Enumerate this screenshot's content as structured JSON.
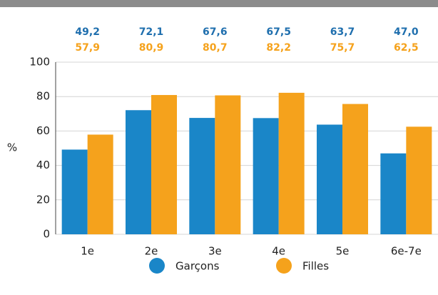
{
  "chart_data": {
    "type": "bar",
    "categories": [
      "1e",
      "2e",
      "3e",
      "4e",
      "5e",
      "6e-7e"
    ],
    "series": [
      {
        "name": "Garçons",
        "color": "#1a86c8",
        "values": [
          49.2,
          72.1,
          67.6,
          67.5,
          63.7,
          47.0
        ],
        "value_labels": [
          "49,2",
          "72,1",
          "67,6",
          "67,5",
          "63,7",
          "47,0"
        ]
      },
      {
        "name": "Filles",
        "color": "#f5a21c",
        "values": [
          57.9,
          80.9,
          80.7,
          82.2,
          75.7,
          62.5
        ],
        "value_labels": [
          "57,9",
          "80,9",
          "80,7",
          "82,2",
          "75,7",
          "62,5"
        ]
      }
    ],
    "ylabel": "%",
    "ylim": [
      0,
      100
    ],
    "yticks": [
      0,
      20,
      40,
      60,
      80,
      100
    ],
    "grid": true,
    "legend": "bottom"
  }
}
